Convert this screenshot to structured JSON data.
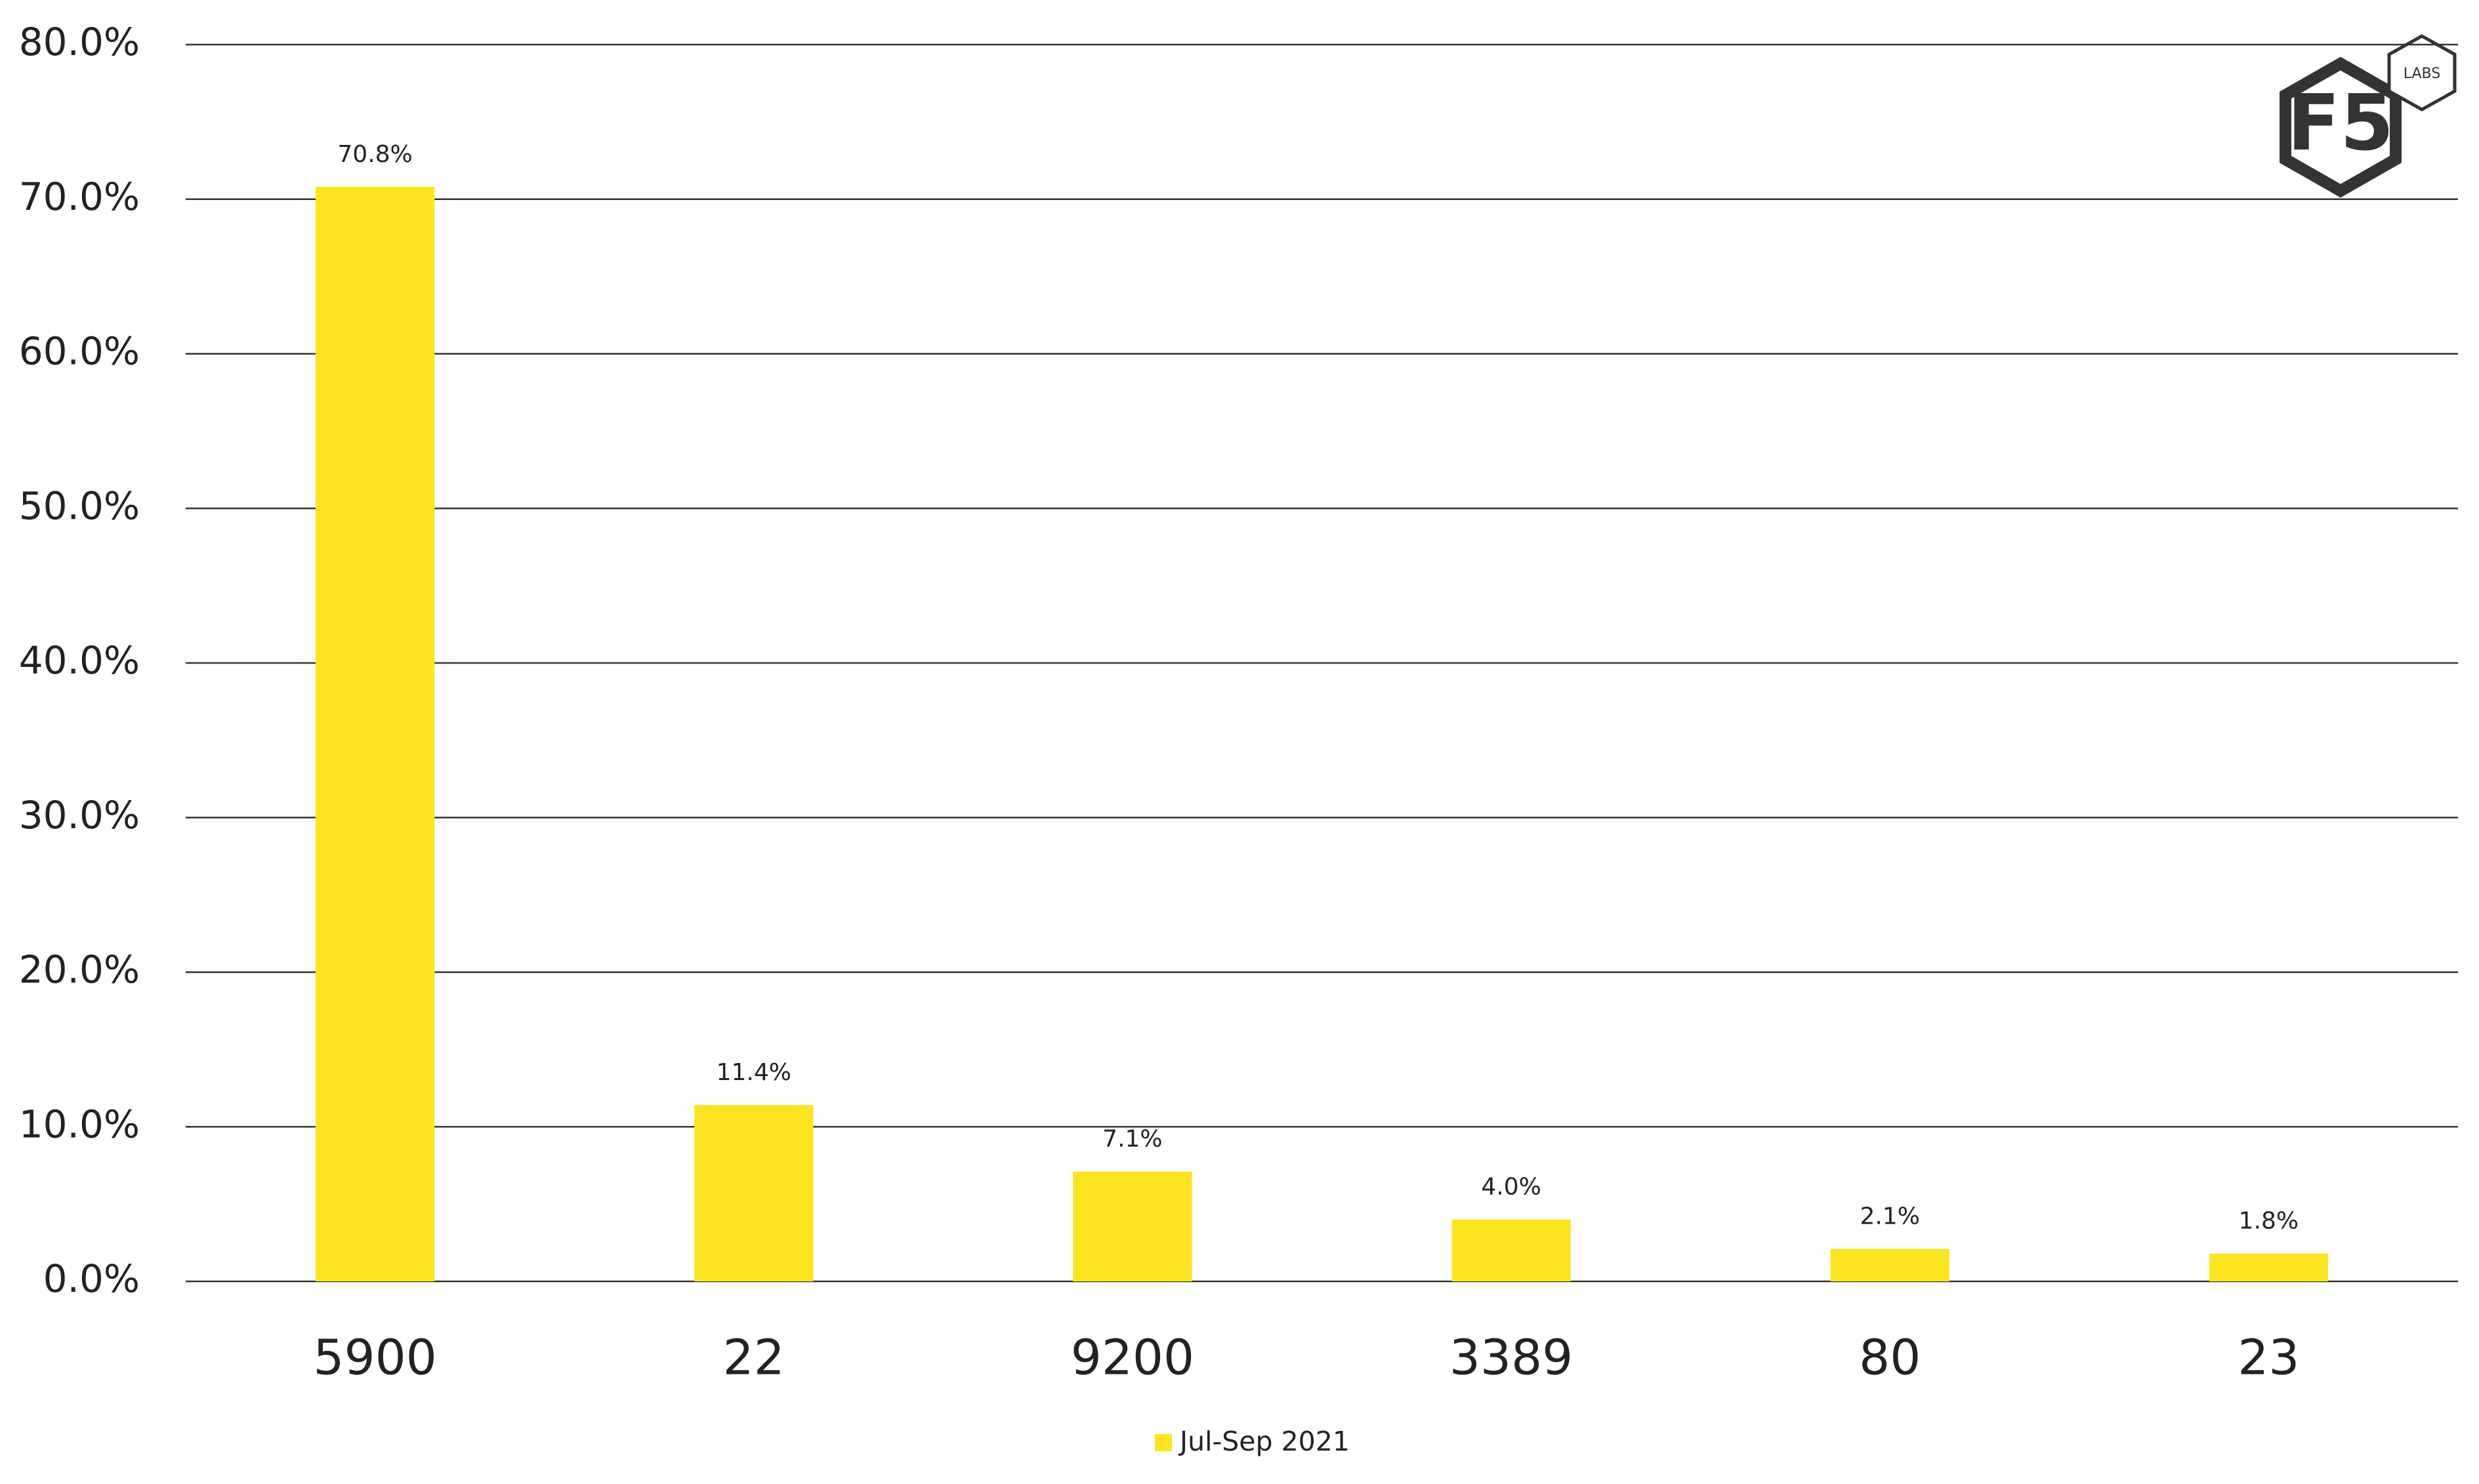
{
  "chart_data": {
    "type": "bar",
    "categories": [
      "5900",
      "22",
      "9200",
      "3389",
      "80",
      "23"
    ],
    "series": [
      {
        "name": "Jul-Sep 2021",
        "color": "#fce421",
        "values": [
          70.8,
          11.4,
          7.1,
          4.0,
          2.1,
          1.8
        ],
        "value_labels": [
          "70.8%",
          "11.4%",
          "7.1%",
          "4.0%",
          "2.1%",
          "1.8%"
        ]
      }
    ],
    "ylim": [
      0,
      80
    ],
    "yticks": [
      {
        "value": 0,
        "label": "0.0%"
      },
      {
        "value": 10,
        "label": "10.0%"
      },
      {
        "value": 20,
        "label": "20.0%"
      },
      {
        "value": 30,
        "label": "30.0%"
      },
      {
        "value": 40,
        "label": "40.0%"
      },
      {
        "value": 50,
        "label": "50.0%"
      },
      {
        "value": 60,
        "label": "60.0%"
      },
      {
        "value": 70,
        "label": "70.0%"
      },
      {
        "value": 80,
        "label": "80.0%"
      }
    ],
    "grid": true,
    "legend": "bottom"
  },
  "logo": {
    "main": "F5",
    "badge": "LABS"
  }
}
